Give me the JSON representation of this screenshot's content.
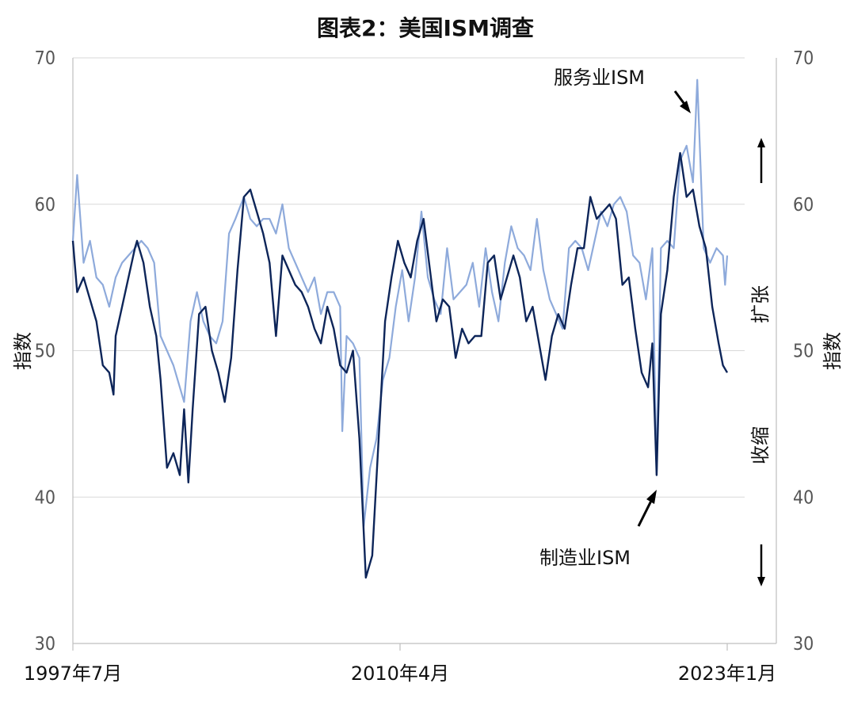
{
  "chart_data": {
    "type": "line",
    "title": "图表2：美国ISM调查",
    "ylabel_left": "指数",
    "ylabel_right": "指数",
    "ylim": [
      30,
      70
    ],
    "yticks": [
      30,
      40,
      50,
      60,
      70
    ],
    "xlim": [
      "1997-07",
      "2023-01"
    ],
    "xticks": [
      {
        "date": "1997-07",
        "label": "1997年7月"
      },
      {
        "date": "2010-04",
        "label": "2010年4月"
      },
      {
        "date": "2023-01",
        "label": "2023年1月"
      }
    ],
    "grid": true,
    "threshold": 50,
    "annotations": {
      "services_label": "服务业ISM",
      "manufacturing_label": "制造业ISM",
      "expansion": "扩张",
      "contraction": "收缩"
    },
    "series": [
      {
        "key": "services",
        "name": "服务业ISM",
        "color": "#8eaadb",
        "points": [
          [
            "1997-07",
            57.5
          ],
          [
            "1997-09",
            62.0
          ],
          [
            "1997-12",
            56.0
          ],
          [
            "1998-03",
            57.5
          ],
          [
            "1998-06",
            55.0
          ],
          [
            "1998-09",
            54.5
          ],
          [
            "1998-12",
            53.0
          ],
          [
            "1999-03",
            55.0
          ],
          [
            "1999-06",
            56.0
          ],
          [
            "1999-09",
            56.5
          ],
          [
            "1999-12",
            57.0
          ],
          [
            "2000-03",
            57.5
          ],
          [
            "2000-06",
            57.0
          ],
          [
            "2000-09",
            56.0
          ],
          [
            "2000-12",
            51.0
          ],
          [
            "2001-03",
            50.0
          ],
          [
            "2001-06",
            49.0
          ],
          [
            "2001-09",
            47.5
          ],
          [
            "2001-11",
            46.5
          ],
          [
            "2002-02",
            52.0
          ],
          [
            "2002-05",
            54.0
          ],
          [
            "2002-08",
            52.0
          ],
          [
            "2002-11",
            51.0
          ],
          [
            "2003-02",
            50.5
          ],
          [
            "2003-05",
            52.0
          ],
          [
            "2003-08",
            58.0
          ],
          [
            "2003-11",
            59.0
          ],
          [
            "2004-03",
            60.5
          ],
          [
            "2004-06",
            59.0
          ],
          [
            "2004-09",
            58.5
          ],
          [
            "2004-12",
            59.0
          ],
          [
            "2005-03",
            59.0
          ],
          [
            "2005-06",
            58.0
          ],
          [
            "2005-09",
            60.0
          ],
          [
            "2005-12",
            57.0
          ],
          [
            "2006-03",
            56.0
          ],
          [
            "2006-06",
            55.0
          ],
          [
            "2006-09",
            54.0
          ],
          [
            "2006-12",
            55.0
          ],
          [
            "2007-03",
            52.5
          ],
          [
            "2007-06",
            54.0
          ],
          [
            "2007-09",
            54.0
          ],
          [
            "2007-12",
            53.0
          ],
          [
            "2008-01",
            44.5
          ],
          [
            "2008-03",
            51.0
          ],
          [
            "2008-06",
            50.5
          ],
          [
            "2008-09",
            49.5
          ],
          [
            "2008-11",
            38.0
          ],
          [
            "2009-02",
            42.0
          ],
          [
            "2009-05",
            44.0
          ],
          [
            "2009-08",
            48.0
          ],
          [
            "2009-11",
            49.5
          ],
          [
            "2010-02",
            53.0
          ],
          [
            "2010-05",
            55.5
          ],
          [
            "2010-08",
            52.0
          ],
          [
            "2010-11",
            55.0
          ],
          [
            "2011-02",
            59.5
          ],
          [
            "2011-05",
            55.0
          ],
          [
            "2011-08",
            53.5
          ],
          [
            "2011-11",
            52.5
          ],
          [
            "2012-02",
            57.0
          ],
          [
            "2012-05",
            53.5
          ],
          [
            "2012-08",
            54.0
          ],
          [
            "2012-11",
            54.5
          ],
          [
            "2013-02",
            56.0
          ],
          [
            "2013-05",
            53.0
          ],
          [
            "2013-08",
            57.0
          ],
          [
            "2013-11",
            54.0
          ],
          [
            "2014-02",
            52.0
          ],
          [
            "2014-05",
            56.0
          ],
          [
            "2014-08",
            58.5
          ],
          [
            "2014-11",
            57.0
          ],
          [
            "2015-02",
            56.5
          ],
          [
            "2015-05",
            55.5
          ],
          [
            "2015-08",
            59.0
          ],
          [
            "2015-11",
            55.5
          ],
          [
            "2016-02",
            53.5
          ],
          [
            "2016-05",
            52.5
          ],
          [
            "2016-08",
            51.5
          ],
          [
            "2016-11",
            57.0
          ],
          [
            "2017-02",
            57.5
          ],
          [
            "2017-05",
            57.0
          ],
          [
            "2017-08",
            55.5
          ],
          [
            "2017-11",
            57.5
          ],
          [
            "2018-02",
            59.5
          ],
          [
            "2018-05",
            58.5
          ],
          [
            "2018-08",
            60.0
          ],
          [
            "2018-11",
            60.5
          ],
          [
            "2019-02",
            59.5
          ],
          [
            "2019-05",
            56.5
          ],
          [
            "2019-08",
            56.0
          ],
          [
            "2019-11",
            53.5
          ],
          [
            "2020-02",
            57.0
          ],
          [
            "2020-04",
            41.5
          ],
          [
            "2020-06",
            57.0
          ],
          [
            "2020-09",
            57.5
          ],
          [
            "2020-12",
            57.0
          ],
          [
            "2021-03",
            63.0
          ],
          [
            "2021-06",
            64.0
          ],
          [
            "2021-09",
            61.5
          ],
          [
            "2021-11",
            68.5
          ],
          [
            "2022-02",
            57.0
          ],
          [
            "2022-05",
            56.0
          ],
          [
            "2022-08",
            57.0
          ],
          [
            "2022-11",
            56.5
          ],
          [
            "2022-12",
            54.5
          ],
          [
            "2023-01",
            56.5
          ]
        ]
      },
      {
        "key": "manufacturing",
        "name": "制造业ISM",
        "color": "#0d2559",
        "points": [
          [
            "1997-07",
            57.5
          ],
          [
            "1997-09",
            54.0
          ],
          [
            "1997-12",
            55.0
          ],
          [
            "1998-03",
            53.5
          ],
          [
            "1998-06",
            52.0
          ],
          [
            "1998-09",
            49.0
          ],
          [
            "1998-12",
            48.5
          ],
          [
            "1999-02",
            47.0
          ],
          [
            "1999-03",
            51.0
          ],
          [
            "1999-06",
            53.0
          ],
          [
            "1999-09",
            55.0
          ],
          [
            "1999-12",
            57.0
          ],
          [
            "2000-01",
            57.5
          ],
          [
            "2000-04",
            56.0
          ],
          [
            "2000-07",
            53.0
          ],
          [
            "2000-10",
            51.0
          ],
          [
            "2000-12",
            48.0
          ],
          [
            "2001-03",
            42.0
          ],
          [
            "2001-06",
            43.0
          ],
          [
            "2001-09",
            41.5
          ],
          [
            "2001-11",
            46.0
          ],
          [
            "2002-01",
            41.0
          ],
          [
            "2002-03",
            46.0
          ],
          [
            "2002-06",
            52.5
          ],
          [
            "2002-09",
            53.0
          ],
          [
            "2002-12",
            50.0
          ],
          [
            "2003-03",
            48.5
          ],
          [
            "2003-06",
            46.5
          ],
          [
            "2003-09",
            49.5
          ],
          [
            "2003-12",
            55.5
          ],
          [
            "2004-03",
            60.5
          ],
          [
            "2004-06",
            61.0
          ],
          [
            "2004-09",
            59.5
          ],
          [
            "2004-12",
            58.0
          ],
          [
            "2005-03",
            56.0
          ],
          [
            "2005-06",
            51.0
          ],
          [
            "2005-09",
            56.5
          ],
          [
            "2005-12",
            55.5
          ],
          [
            "2006-03",
            54.5
          ],
          [
            "2006-06",
            54.0
          ],
          [
            "2006-09",
            53.0
          ],
          [
            "2006-12",
            51.5
          ],
          [
            "2007-03",
            50.5
          ],
          [
            "2007-06",
            53.0
          ],
          [
            "2007-09",
            51.5
          ],
          [
            "2007-12",
            49.0
          ],
          [
            "2008-03",
            48.5
          ],
          [
            "2008-06",
            50.0
          ],
          [
            "2008-09",
            44.0
          ],
          [
            "2008-12",
            34.5
          ],
          [
            "2009-03",
            36.0
          ],
          [
            "2009-06",
            44.0
          ],
          [
            "2009-09",
            52.0
          ],
          [
            "2009-12",
            55.0
          ],
          [
            "2010-03",
            57.5
          ],
          [
            "2010-06",
            56.0
          ],
          [
            "2010-09",
            55.0
          ],
          [
            "2010-12",
            57.5
          ],
          [
            "2011-03",
            59.0
          ],
          [
            "2011-06",
            55.5
          ],
          [
            "2011-09",
            52.0
          ],
          [
            "2011-12",
            53.5
          ],
          [
            "2012-03",
            53.0
          ],
          [
            "2012-06",
            49.5
          ],
          [
            "2012-09",
            51.5
          ],
          [
            "2012-12",
            50.5
          ],
          [
            "2013-03",
            51.0
          ],
          [
            "2013-06",
            51.0
          ],
          [
            "2013-09",
            56.0
          ],
          [
            "2013-12",
            56.5
          ],
          [
            "2014-03",
            53.5
          ],
          [
            "2014-06",
            55.0
          ],
          [
            "2014-09",
            56.5
          ],
          [
            "2014-12",
            55.0
          ],
          [
            "2015-03",
            52.0
          ],
          [
            "2015-06",
            53.0
          ],
          [
            "2015-09",
            50.5
          ],
          [
            "2015-12",
            48.0
          ],
          [
            "2016-03",
            51.0
          ],
          [
            "2016-06",
            52.5
          ],
          [
            "2016-09",
            51.5
          ],
          [
            "2016-12",
            54.5
          ],
          [
            "2017-03",
            57.0
          ],
          [
            "2017-06",
            57.0
          ],
          [
            "2017-09",
            60.5
          ],
          [
            "2017-12",
            59.0
          ],
          [
            "2018-03",
            59.5
          ],
          [
            "2018-06",
            60.0
          ],
          [
            "2018-09",
            59.0
          ],
          [
            "2018-12",
            54.5
          ],
          [
            "2019-03",
            55.0
          ],
          [
            "2019-06",
            51.5
          ],
          [
            "2019-09",
            48.5
          ],
          [
            "2019-12",
            47.5
          ],
          [
            "2020-02",
            50.5
          ],
          [
            "2020-04",
            41.5
          ],
          [
            "2020-06",
            52.5
          ],
          [
            "2020-09",
            55.5
          ],
          [
            "2020-12",
            60.5
          ],
          [
            "2021-03",
            63.5
          ],
          [
            "2021-06",
            60.5
          ],
          [
            "2021-09",
            61.0
          ],
          [
            "2021-12",
            58.5
          ],
          [
            "2022-03",
            57.0
          ],
          [
            "2022-06",
            53.0
          ],
          [
            "2022-09",
            50.5
          ],
          [
            "2022-11",
            49.0
          ],
          [
            "2023-01",
            48.5
          ]
        ]
      }
    ]
  }
}
